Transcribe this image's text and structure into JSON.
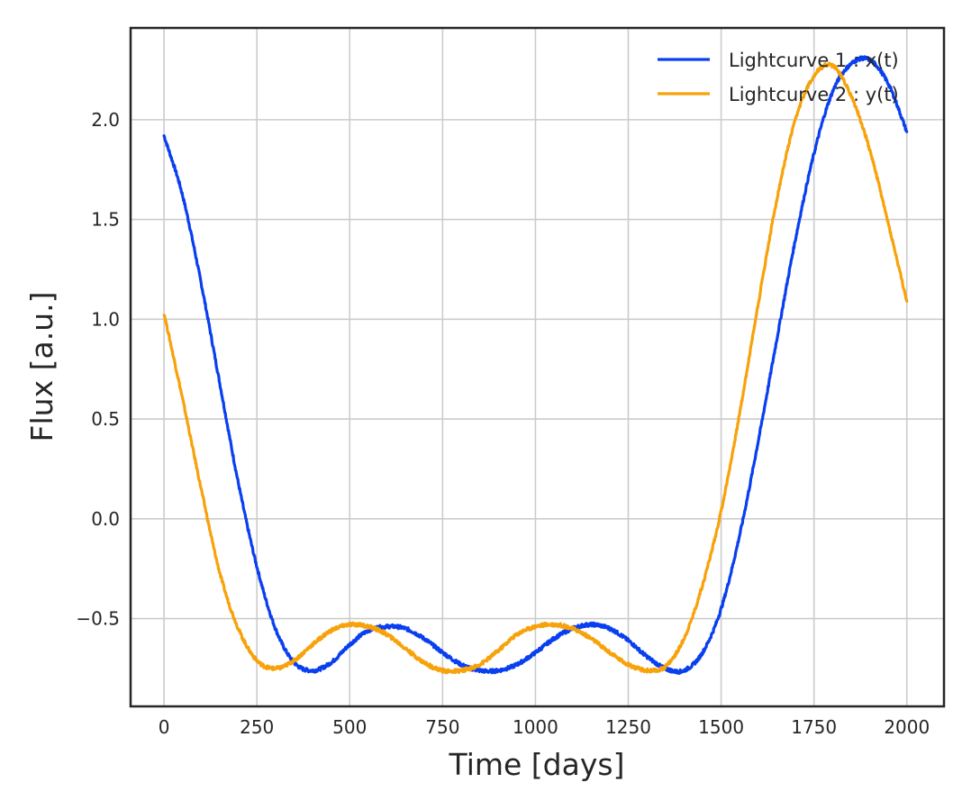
{
  "chart_data": {
    "type": "line",
    "title": "",
    "xlabel": "Time [days]",
    "ylabel": "Flux [a.u.]",
    "xlim": [
      -90,
      2100
    ],
    "ylim": [
      -0.94,
      2.46
    ],
    "xticks": [
      0,
      250,
      500,
      750,
      1000,
      1250,
      1500,
      1750,
      2000
    ],
    "xtick_labels": [
      "0",
      "250",
      "500",
      "750",
      "1000",
      "1250",
      "1500",
      "1750",
      "2000"
    ],
    "yticks": [
      -0.5,
      0.0,
      0.5,
      1.0,
      1.5,
      2.0
    ],
    "ytick_labels": [
      "−0.5",
      "0.0",
      "0.5",
      "1.0",
      "1.5",
      "2.0"
    ],
    "grid": true,
    "legend_position": "top-right",
    "series": [
      {
        "name": "Lightcurve 1 : x(t)",
        "color": "#0a3ff0",
        "x": [
          0,
          50,
          100,
          150,
          200,
          250,
          300,
          350,
          400,
          450,
          500,
          550,
          600,
          650,
          700,
          750,
          800,
          850,
          900,
          950,
          1000,
          1050,
          1100,
          1150,
          1200,
          1250,
          1300,
          1350,
          1400,
          1450,
          1500,
          1550,
          1600,
          1650,
          1700,
          1750,
          1800,
          1850,
          1900,
          1950,
          2000
        ],
        "y": [
          1.92,
          1.62,
          1.18,
          0.68,
          0.18,
          -0.24,
          -0.55,
          -0.72,
          -0.76,
          -0.72,
          -0.63,
          -0.56,
          -0.54,
          -0.55,
          -0.6,
          -0.67,
          -0.73,
          -0.76,
          -0.76,
          -0.73,
          -0.67,
          -0.6,
          -0.55,
          -0.53,
          -0.55,
          -0.61,
          -0.69,
          -0.75,
          -0.76,
          -0.67,
          -0.45,
          -0.08,
          0.39,
          0.9,
          1.4,
          1.83,
          2.14,
          2.28,
          2.3,
          2.18,
          1.94
        ]
      },
      {
        "name": "Lightcurve 2 : y(t)",
        "color": "#f7a20a",
        "x": [
          0,
          50,
          100,
          150,
          200,
          250,
          300,
          350,
          400,
          450,
          500,
          550,
          600,
          650,
          700,
          750,
          800,
          850,
          900,
          950,
          1000,
          1050,
          1100,
          1150,
          1200,
          1250,
          1300,
          1350,
          1400,
          1450,
          1500,
          1550,
          1600,
          1650,
          1700,
          1750,
          1800,
          1850,
          1900,
          1950,
          2000
        ],
        "y": [
          1.03,
          0.6,
          0.15,
          -0.27,
          -0.55,
          -0.71,
          -0.75,
          -0.71,
          -0.63,
          -0.56,
          -0.53,
          -0.54,
          -0.58,
          -0.65,
          -0.72,
          -0.76,
          -0.76,
          -0.73,
          -0.66,
          -0.58,
          -0.54,
          -0.53,
          -0.55,
          -0.6,
          -0.67,
          -0.73,
          -0.76,
          -0.74,
          -0.6,
          -0.33,
          0.04,
          0.53,
          1.08,
          1.6,
          2.0,
          2.22,
          2.27,
          2.12,
          1.85,
          1.48,
          1.09
        ]
      }
    ]
  }
}
